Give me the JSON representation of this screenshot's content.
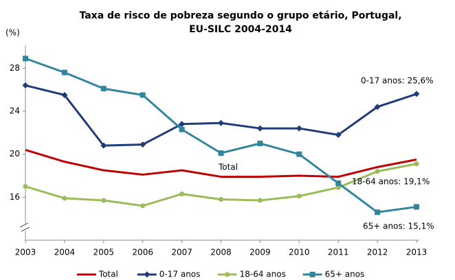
{
  "chart_data": {
    "type": "line",
    "title": [
      "Taxa de risco de pobreza segundo o grupo etário, Portugal,",
      "EU-SILC 2004-2014"
    ],
    "y_label": "(%)",
    "categories": [
      "2003",
      "2004",
      "2005",
      "2006",
      "2007",
      "2008",
      "2009",
      "2010",
      "2011",
      "2012",
      "2013"
    ],
    "series": [
      {
        "name": "Total",
        "color": "#c00000",
        "marker": "none",
        "values": [
          20.4,
          19.3,
          18.5,
          18.1,
          18.5,
          17.9,
          17.9,
          18.0,
          17.9,
          18.8,
          19.5
        ]
      },
      {
        "name": "0-17 anos",
        "color": "#1f3b7a",
        "marker": "diamond",
        "values": [
          26.4,
          25.5,
          20.8,
          20.9,
          22.8,
          22.9,
          22.4,
          22.4,
          21.8,
          24.4,
          25.6
        ]
      },
      {
        "name": "18-64 anos",
        "color": "#9bbb59",
        "marker": "circle",
        "values": [
          17.0,
          15.9,
          15.7,
          15.2,
          16.3,
          15.8,
          15.7,
          16.1,
          16.9,
          18.4,
          19.1
        ]
      },
      {
        "name": "65+ anos",
        "color": "#31859c",
        "marker": "square",
        "values": [
          28.9,
          27.6,
          26.1,
          25.5,
          22.3,
          20.1,
          21.0,
          20.0,
          17.3,
          14.6,
          15.1
        ]
      }
    ],
    "annotations": [
      "0-17 anos: 25,6%",
      "18-64 anos: 19,1%",
      "65+ anos: 15,1%",
      "Total"
    ],
    "ylim": [
      12,
      30
    ],
    "yticks": [
      16,
      20,
      24,
      28
    ],
    "legend": "bottom"
  }
}
